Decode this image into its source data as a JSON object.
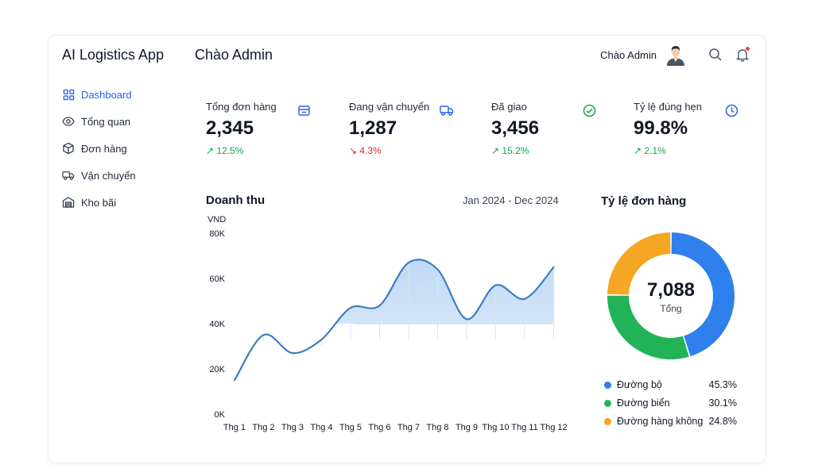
{
  "app": {
    "title": "AI Logistics App"
  },
  "sidebar": {
    "items": [
      {
        "label": "Dashboard",
        "icon": "dashboard-icon",
        "active": true
      },
      {
        "label": "Tổng quan",
        "icon": "eye-icon"
      },
      {
        "label": "Đơn hàng",
        "icon": "box-icon"
      },
      {
        "label": "Vận chuyển",
        "icon": "truck-icon"
      },
      {
        "label": "Kho bãi",
        "icon": "warehouse-icon"
      }
    ]
  },
  "header": {
    "greeting": "Chào Admin",
    "user_name": "Chào Admin",
    "search_icon": "search-icon",
    "bell_icon": "bell-icon"
  },
  "kpis": [
    {
      "label": "Tổng đơn hàng",
      "value": "2,345",
      "change": "↗ 12.5%",
      "trend": "up",
      "icon": "package-icon",
      "icon_color": "#2563eb"
    },
    {
      "label": "Đang vận chuyển",
      "value": "1,287",
      "change": "↘ 4.3%",
      "trend": "down",
      "icon": "truck-icon",
      "icon_color": "#2563eb"
    },
    {
      "label": "Đã giao",
      "value": "3,456",
      "change": "↗ 15.2%",
      "trend": "up",
      "icon": "check-circle-icon",
      "icon_color": "#16a34a"
    },
    {
      "label": "Tỷ lệ đúng hẹn",
      "value": "99.8%",
      "change": "↗ 2.1%",
      "trend": "up",
      "icon": "clock-icon",
      "icon_color": "#2563eb"
    }
  ],
  "revenue": {
    "title": "Doanh thu",
    "range": "Jan 2024 - Dec 2024"
  },
  "order_share": {
    "title": "Tỷ lệ đơn hàng",
    "total": "7,088",
    "total_label": "Tổng",
    "legend": [
      {
        "name": "Đường bộ",
        "pct": "45.3%",
        "color": "#2f80ed"
      },
      {
        "name": "Đường biển",
        "pct": "30.1%",
        "color": "#22b357"
      },
      {
        "name": "Đường hàng không",
        "pct": "24.8%",
        "color": "#f5a623"
      }
    ]
  },
  "chart_data": [
    {
      "type": "line",
      "title": "Doanh thu",
      "ylabel": "VND",
      "xlabel": "",
      "categories": [
        "Thg 1",
        "Thg 2",
        "Thg 3",
        "Thg 4",
        "Thg 5",
        "Thg 6",
        "Thg 7",
        "Thg 8",
        "Thg 9",
        "Thg 10",
        "Thg 11",
        "Thg 12"
      ],
      "y_ticks": [
        "0K",
        "20K",
        "40K",
        "60K",
        "80K"
      ],
      "ylim": [
        0,
        80000
      ],
      "values": [
        15000,
        35000,
        27000,
        33000,
        47000,
        48000,
        67000,
        64000,
        42000,
        57000,
        51000,
        65000
      ],
      "color": "#3b7dc4",
      "grid": false,
      "legend": "none"
    },
    {
      "type": "pie",
      "title": "Tỷ lệ đơn hàng",
      "labels": [
        "Đường bộ",
        "Đường biển",
        "Đường hàng không"
      ],
      "values": [
        45.3,
        30.1,
        24.8
      ],
      "colors": [
        "#2f80ed",
        "#22b357",
        "#f5a623"
      ],
      "legend": "bottom"
    }
  ]
}
